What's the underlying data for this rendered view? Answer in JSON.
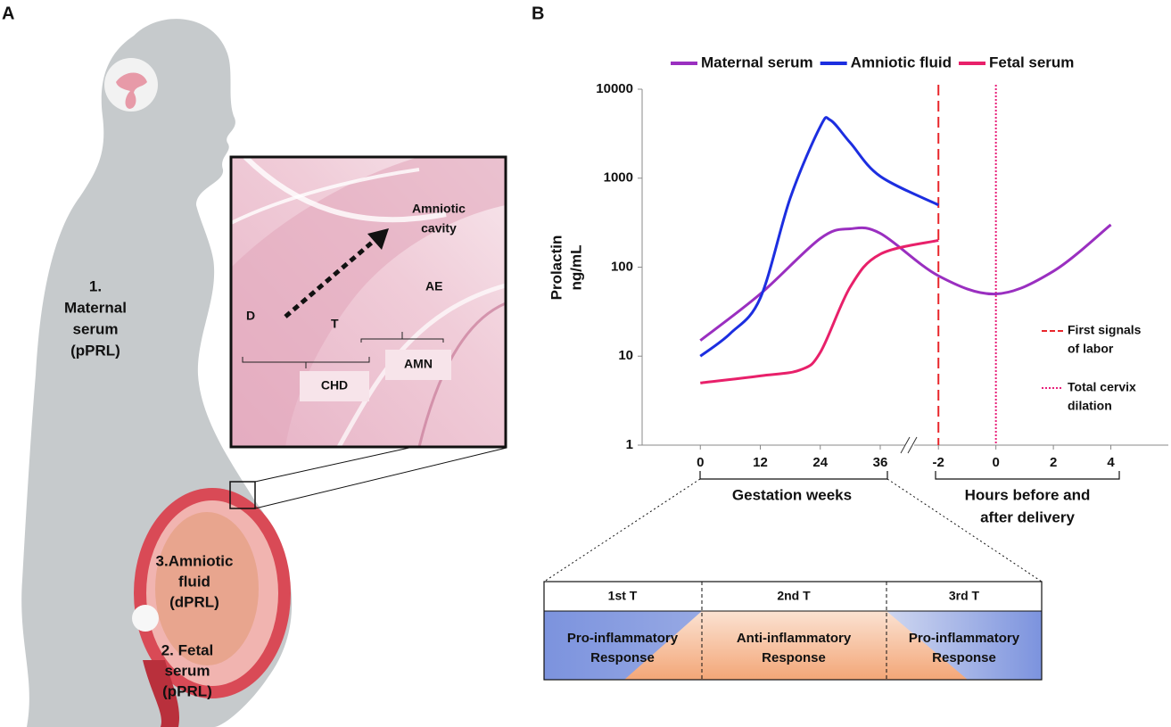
{
  "panel_labels": [
    "A",
    "B"
  ],
  "panel_a": {
    "maternal": [
      "1.",
      "Maternal",
      "serum",
      "(pPRL)"
    ],
    "amniotic": [
      "3.Amniotic",
      "fluid",
      "(dPRL)"
    ],
    "fetal": [
      "2. Fetal",
      "serum",
      "(pPRL)"
    ],
    "micrograph": {
      "cavity": [
        "Amniotic",
        "cavity"
      ],
      "ae": "AE",
      "d": "D",
      "t": "T",
      "chd": "CHD",
      "amn": "AMN"
    }
  },
  "chart_data": {
    "type": "line",
    "y_label": [
      "Prolactin",
      "ng/mL"
    ],
    "log_scale": true,
    "ylim": [
      1,
      10000
    ],
    "yticks": [
      1,
      10,
      100,
      1000,
      10000
    ],
    "gestation": {
      "label": "Gestation weeks",
      "xlim": [
        -12,
        41
      ],
      "xticks": [
        0,
        12,
        24,
        36
      ]
    },
    "hours": {
      "label": [
        "Hours before and",
        "after delivery"
      ],
      "xlim": [
        -3,
        6
      ],
      "xticks": [
        -2,
        0,
        2,
        4
      ]
    },
    "series": [
      {
        "name": "Maternal serum",
        "color": "#9a2fc0",
        "x": [
          0,
          12,
          24,
          30,
          36
        ],
        "values": [
          15,
          50,
          210,
          270,
          240
        ],
        "hours_x": [
          -2,
          0,
          2,
          4
        ],
        "hours_values": [
          80,
          50,
          90,
          300
        ]
      },
      {
        "name": "Amniotic fluid",
        "color": "#1c2ee0",
        "x": [
          0,
          6,
          12,
          18,
          24,
          26,
          30,
          36
        ],
        "values": [
          10,
          18,
          45,
          600,
          3800,
          4500,
          2500,
          1050
        ],
        "hours_x": [
          -2
        ],
        "hours_values": [
          500
        ]
      },
      {
        "name": "Fetal serum",
        "color": "#e8206a",
        "x": [
          0,
          12,
          20,
          24,
          30,
          36
        ],
        "values": [
          5,
          6,
          7,
          11,
          60,
          140
        ],
        "hours_x": [
          -2
        ],
        "hours_values": [
          200
        ]
      }
    ],
    "annotations": [
      {
        "label": [
          "First signals",
          "of labor"
        ],
        "x": -2,
        "color": "#e8262b",
        "style": "dashed"
      },
      {
        "label": [
          "Total cervix",
          "dilation"
        ],
        "x": 0,
        "color": "#e8207a",
        "style": "dotted"
      }
    ]
  },
  "trimesters": [
    {
      "name": "1st T",
      "response": [
        "Pro-inflammatory",
        "Response"
      ]
    },
    {
      "name": "2nd T",
      "response": [
        "Anti-inflammatory",
        "Response"
      ]
    },
    {
      "name": "3rd T",
      "response": [
        "Pro-inflammatory",
        "Response"
      ]
    }
  ]
}
